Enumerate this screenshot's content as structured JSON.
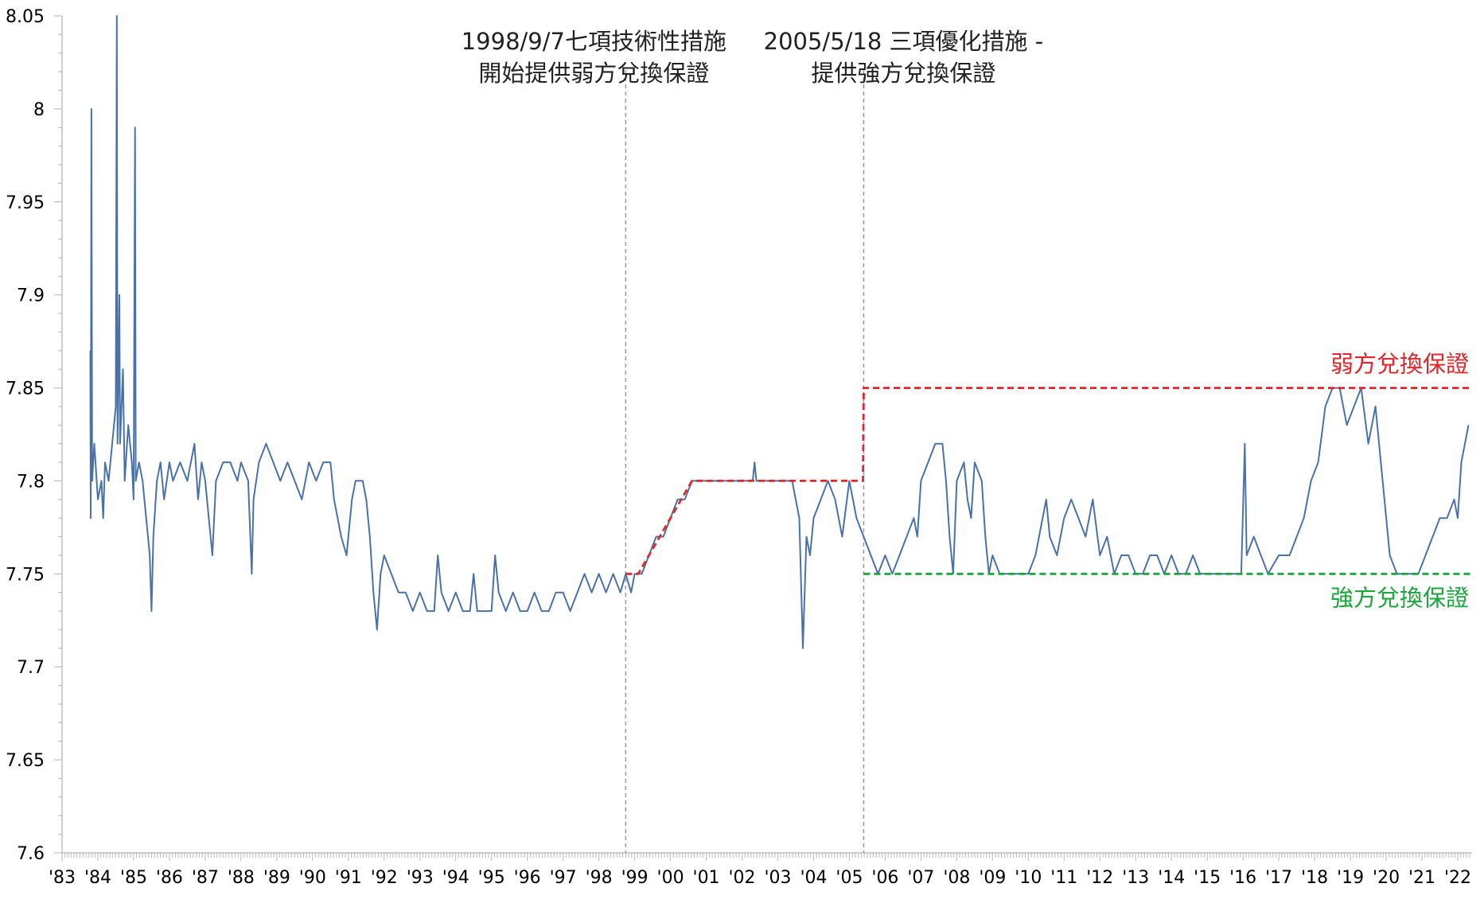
{
  "chart_data": {
    "type": "line",
    "title": "",
    "xlabel": "",
    "ylabel": "",
    "ylim": [
      7.6,
      8.05
    ],
    "xlim": [
      1983,
      2022.4
    ],
    "y_ticks": [
      "7.6",
      "7.65",
      "7.7",
      "7.75",
      "7.8",
      "7.85",
      "7.9",
      "7.95",
      "8",
      "8.05"
    ],
    "x_ticks": [
      "'83",
      "'84",
      "'85",
      "'86",
      "'87",
      "'88",
      "'89",
      "'90",
      "'91",
      "'92",
      "'93",
      "'94",
      "'95",
      "'96",
      "'97",
      "'98",
      "'99",
      "'00",
      "'01",
      "'02",
      "'03",
      "'04",
      "'05",
      "'06",
      "'07",
      "'08",
      "'09",
      "'10",
      "'11",
      "'12",
      "'13",
      "'14",
      "'15",
      "'16",
      "'17",
      "'18",
      "'19",
      "'20",
      "'21",
      "'22"
    ],
    "grid": false,
    "series": [
      {
        "name": "",
        "color": "#4a72a8",
        "points": [
          [
            1983.79,
            7.87
          ],
          [
            1983.8,
            7.78
          ],
          [
            1983.82,
            8.0
          ],
          [
            1983.84,
            7.8
          ],
          [
            1983.9,
            7.82
          ],
          [
            1984.0,
            7.79
          ],
          [
            1984.1,
            7.8
          ],
          [
            1984.15,
            7.78
          ],
          [
            1984.2,
            7.81
          ],
          [
            1984.3,
            7.8
          ],
          [
            1984.4,
            7.82
          ],
          [
            1984.5,
            7.84
          ],
          [
            1984.53,
            8.05
          ],
          [
            1984.55,
            7.82
          ],
          [
            1984.6,
            7.9
          ],
          [
            1984.62,
            7.82
          ],
          [
            1984.7,
            7.86
          ],
          [
            1984.75,
            7.8
          ],
          [
            1984.85,
            7.83
          ],
          [
            1984.95,
            7.81
          ],
          [
            1985.0,
            7.79
          ],
          [
            1985.04,
            7.99
          ],
          [
            1985.06,
            7.8
          ],
          [
            1985.15,
            7.81
          ],
          [
            1985.25,
            7.8
          ],
          [
            1985.35,
            7.78
          ],
          [
            1985.45,
            7.76
          ],
          [
            1985.5,
            7.73
          ],
          [
            1985.55,
            7.77
          ],
          [
            1985.65,
            7.8
          ],
          [
            1985.75,
            7.81
          ],
          [
            1985.85,
            7.79
          ],
          [
            1986.0,
            7.81
          ],
          [
            1986.1,
            7.8
          ],
          [
            1986.3,
            7.81
          ],
          [
            1986.5,
            7.8
          ],
          [
            1986.7,
            7.82
          ],
          [
            1986.8,
            7.79
          ],
          [
            1986.9,
            7.81
          ],
          [
            1987.0,
            7.8
          ],
          [
            1987.1,
            7.78
          ],
          [
            1987.2,
            7.76
          ],
          [
            1987.3,
            7.8
          ],
          [
            1987.5,
            7.81
          ],
          [
            1987.7,
            7.81
          ],
          [
            1987.9,
            7.8
          ],
          [
            1988.0,
            7.81
          ],
          [
            1988.2,
            7.8
          ],
          [
            1988.3,
            7.75
          ],
          [
            1988.35,
            7.79
          ],
          [
            1988.5,
            7.81
          ],
          [
            1988.7,
            7.82
          ],
          [
            1988.9,
            7.81
          ],
          [
            1989.1,
            7.8
          ],
          [
            1989.3,
            7.81
          ],
          [
            1989.5,
            7.8
          ],
          [
            1989.7,
            7.79
          ],
          [
            1989.9,
            7.81
          ],
          [
            1990.1,
            7.8
          ],
          [
            1990.3,
            7.81
          ],
          [
            1990.5,
            7.81
          ],
          [
            1990.6,
            7.79
          ],
          [
            1990.7,
            7.78
          ],
          [
            1990.8,
            7.77
          ],
          [
            1990.95,
            7.76
          ],
          [
            1991.1,
            7.79
          ],
          [
            1991.2,
            7.8
          ],
          [
            1991.4,
            7.8
          ],
          [
            1991.5,
            7.79
          ],
          [
            1991.6,
            7.77
          ],
          [
            1991.7,
            7.74
          ],
          [
            1991.8,
            7.72
          ],
          [
            1991.9,
            7.75
          ],
          [
            1992.0,
            7.76
          ],
          [
            1992.2,
            7.75
          ],
          [
            1992.4,
            7.74
          ],
          [
            1992.6,
            7.74
          ],
          [
            1992.8,
            7.73
          ],
          [
            1993.0,
            7.74
          ],
          [
            1993.2,
            7.73
          ],
          [
            1993.4,
            7.73
          ],
          [
            1993.5,
            7.76
          ],
          [
            1993.6,
            7.74
          ],
          [
            1993.8,
            7.73
          ],
          [
            1994.0,
            7.74
          ],
          [
            1994.2,
            7.73
          ],
          [
            1994.4,
            7.73
          ],
          [
            1994.5,
            7.75
          ],
          [
            1994.6,
            7.73
          ],
          [
            1994.8,
            7.73
          ],
          [
            1995.0,
            7.73
          ],
          [
            1995.1,
            7.76
          ],
          [
            1995.2,
            7.74
          ],
          [
            1995.4,
            7.73
          ],
          [
            1995.6,
            7.74
          ],
          [
            1995.8,
            7.73
          ],
          [
            1996.0,
            7.73
          ],
          [
            1996.2,
            7.74
          ],
          [
            1996.4,
            7.73
          ],
          [
            1996.6,
            7.73
          ],
          [
            1996.8,
            7.74
          ],
          [
            1997.0,
            7.74
          ],
          [
            1997.2,
            7.73
          ],
          [
            1997.4,
            7.74
          ],
          [
            1997.6,
            7.75
          ],
          [
            1997.8,
            7.74
          ],
          [
            1998.0,
            7.75
          ],
          [
            1998.2,
            7.74
          ],
          [
            1998.4,
            7.75
          ],
          [
            1998.6,
            7.74
          ],
          [
            1998.75,
            7.75
          ],
          [
            1998.9,
            7.74
          ],
          [
            1999.0,
            7.75
          ],
          [
            1999.2,
            7.75
          ],
          [
            1999.4,
            7.76
          ],
          [
            1999.6,
            7.77
          ],
          [
            1999.8,
            7.77
          ],
          [
            2000.0,
            7.78
          ],
          [
            2000.2,
            7.79
          ],
          [
            2000.4,
            7.79
          ],
          [
            2000.6,
            7.8
          ],
          [
            2000.8,
            7.8
          ],
          [
            2001.0,
            7.8
          ],
          [
            2001.5,
            7.8
          ],
          [
            2002.0,
            7.8
          ],
          [
            2002.3,
            7.8
          ],
          [
            2002.35,
            7.81
          ],
          [
            2002.4,
            7.8
          ],
          [
            2003.0,
            7.8
          ],
          [
            2003.4,
            7.8
          ],
          [
            2003.6,
            7.78
          ],
          [
            2003.7,
            7.71
          ],
          [
            2003.8,
            7.77
          ],
          [
            2003.9,
            7.76
          ],
          [
            2004.0,
            7.78
          ],
          [
            2004.2,
            7.79
          ],
          [
            2004.4,
            7.8
          ],
          [
            2004.6,
            7.79
          ],
          [
            2004.8,
            7.77
          ],
          [
            2005.0,
            7.8
          ],
          [
            2005.2,
            7.78
          ],
          [
            2005.4,
            7.77
          ],
          [
            2005.6,
            7.76
          ],
          [
            2005.8,
            7.75
          ],
          [
            2006.0,
            7.76
          ],
          [
            2006.2,
            7.75
          ],
          [
            2006.4,
            7.76
          ],
          [
            2006.6,
            7.77
          ],
          [
            2006.8,
            7.78
          ],
          [
            2006.9,
            7.77
          ],
          [
            2007.0,
            7.8
          ],
          [
            2007.2,
            7.81
          ],
          [
            2007.4,
            7.82
          ],
          [
            2007.6,
            7.82
          ],
          [
            2007.7,
            7.8
          ],
          [
            2007.8,
            7.77
          ],
          [
            2007.9,
            7.75
          ],
          [
            2008.0,
            7.8
          ],
          [
            2008.2,
            7.81
          ],
          [
            2008.3,
            7.79
          ],
          [
            2008.4,
            7.78
          ],
          [
            2008.5,
            7.81
          ],
          [
            2008.7,
            7.8
          ],
          [
            2008.8,
            7.77
          ],
          [
            2008.9,
            7.75
          ],
          [
            2009.0,
            7.76
          ],
          [
            2009.2,
            7.75
          ],
          [
            2009.5,
            7.75
          ],
          [
            2009.8,
            7.75
          ],
          [
            2010.0,
            7.75
          ],
          [
            2010.2,
            7.76
          ],
          [
            2010.4,
            7.78
          ],
          [
            2010.5,
            7.79
          ],
          [
            2010.6,
            7.77
          ],
          [
            2010.8,
            7.76
          ],
          [
            2011.0,
            7.78
          ],
          [
            2011.2,
            7.79
          ],
          [
            2011.4,
            7.78
          ],
          [
            2011.6,
            7.77
          ],
          [
            2011.8,
            7.79
          ],
          [
            2012.0,
            7.76
          ],
          [
            2012.2,
            7.77
          ],
          [
            2012.4,
            7.75
          ],
          [
            2012.6,
            7.76
          ],
          [
            2012.8,
            7.76
          ],
          [
            2013.0,
            7.75
          ],
          [
            2013.2,
            7.75
          ],
          [
            2013.4,
            7.76
          ],
          [
            2013.6,
            7.76
          ],
          [
            2013.8,
            7.75
          ],
          [
            2014.0,
            7.76
          ],
          [
            2014.2,
            7.75
          ],
          [
            2014.4,
            7.75
          ],
          [
            2014.6,
            7.76
          ],
          [
            2014.8,
            7.75
          ],
          [
            2015.0,
            7.75
          ],
          [
            2015.3,
            7.75
          ],
          [
            2015.6,
            7.75
          ],
          [
            2015.8,
            7.75
          ],
          [
            2015.95,
            7.75
          ],
          [
            2016.05,
            7.82
          ],
          [
            2016.1,
            7.76
          ],
          [
            2016.3,
            7.77
          ],
          [
            2016.5,
            7.76
          ],
          [
            2016.7,
            7.75
          ],
          [
            2017.0,
            7.76
          ],
          [
            2017.3,
            7.76
          ],
          [
            2017.5,
            7.77
          ],
          [
            2017.7,
            7.78
          ],
          [
            2017.9,
            7.8
          ],
          [
            2018.1,
            7.81
          ],
          [
            2018.3,
            7.84
          ],
          [
            2018.5,
            7.85
          ],
          [
            2018.7,
            7.85
          ],
          [
            2018.9,
            7.83
          ],
          [
            2019.1,
            7.84
          ],
          [
            2019.3,
            7.85
          ],
          [
            2019.5,
            7.82
          ],
          [
            2019.7,
            7.84
          ],
          [
            2019.9,
            7.8
          ],
          [
            2020.0,
            7.78
          ],
          [
            2020.1,
            7.76
          ],
          [
            2020.3,
            7.75
          ],
          [
            2020.5,
            7.75
          ],
          [
            2020.7,
            7.75
          ],
          [
            2020.9,
            7.75
          ],
          [
            2021.1,
            7.76
          ],
          [
            2021.3,
            7.77
          ],
          [
            2021.5,
            7.78
          ],
          [
            2021.7,
            7.78
          ],
          [
            2021.9,
            7.79
          ],
          [
            2022.0,
            7.78
          ],
          [
            2022.1,
            7.81
          ],
          [
            2022.2,
            7.82
          ],
          [
            2022.3,
            7.83
          ]
        ]
      },
      {
        "name": "弱方兌換保證",
        "color": "#e3262b",
        "dashed": true,
        "points": [
          [
            1998.75,
            7.75
          ],
          [
            1999.1,
            7.75
          ],
          [
            2000.6,
            7.8
          ],
          [
            2005.38,
            7.8
          ],
          [
            2005.4,
            7.85
          ],
          [
            2022.4,
            7.85
          ]
        ]
      },
      {
        "name": "強方兌換保證",
        "color": "#1aa63c",
        "dashed": true,
        "points": [
          [
            2005.4,
            7.75
          ],
          [
            2022.4,
            7.75
          ]
        ]
      }
    ],
    "vlines": [
      1998.75,
      2005.4
    ],
    "annotations": [
      {
        "lines": [
          "1998/9/7七項技術性措施",
          "開始提供弱方兌換保證"
        ]
      },
      {
        "lines": [
          "2005/5/18  三項優化措施 -",
          "提供強方兌換保證"
        ]
      }
    ],
    "band_labels": [
      {
        "text": "弱方兌換保證",
        "color": "#e3262b"
      },
      {
        "text": "強方兌換保證",
        "color": "#1aa63c"
      }
    ]
  }
}
